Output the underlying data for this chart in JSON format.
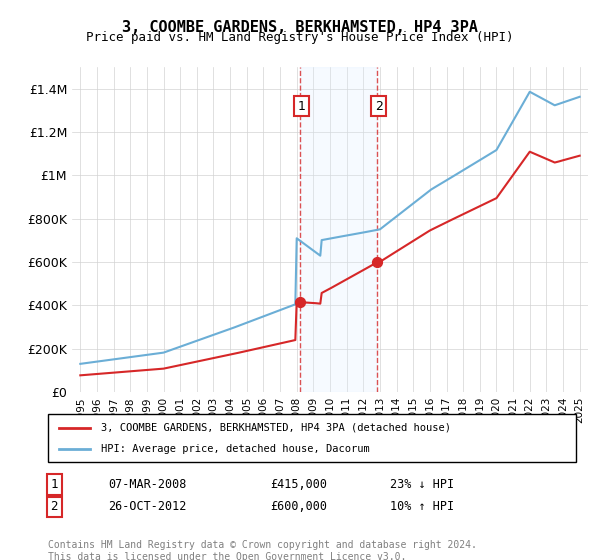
{
  "title": "3, COOMBE GARDENS, BERKHAMSTED, HP4 3PA",
  "subtitle": "Price paid vs. HM Land Registry's House Price Index (HPI)",
  "xlabel": "",
  "ylabel": "",
  "ylim": [
    0,
    1500000
  ],
  "yticks": [
    0,
    200000,
    400000,
    600000,
    800000,
    1000000,
    1200000,
    1400000
  ],
  "ytick_labels": [
    "£0",
    "£200K",
    "£400K",
    "£600K",
    "£800K",
    "£1M",
    "£1.2M",
    "£1.4M"
  ],
  "sale1_date_x": 2008.17,
  "sale1_price": 415000,
  "sale1_label": "1",
  "sale2_date_x": 2012.82,
  "sale2_price": 600000,
  "sale2_label": "2",
  "shade_xmin": 2008.17,
  "shade_xmax": 2012.82,
  "hpi_color": "#6baed6",
  "price_color": "#d62728",
  "sale_dot_color": "#d62728",
  "shade_color": "#ddeeff",
  "dashed_line_color": "#d62728",
  "legend_label1": "3, COOMBE GARDENS, BERKHAMSTED, HP4 3PA (detached house)",
  "legend_label2": "HPI: Average price, detached house, Dacorum",
  "annotation1_num": "1",
  "annotation1_date": "07-MAR-2008",
  "annotation1_price": "£415,000",
  "annotation1_hpi": "23% ↓ HPI",
  "annotation2_num": "2",
  "annotation2_date": "26-OCT-2012",
  "annotation2_price": "£600,000",
  "annotation2_hpi": "10% ↑ HPI",
  "footer": "Contains HM Land Registry data © Crown copyright and database right 2024.\nThis data is licensed under the Open Government Licence v3.0.",
  "xlim_min": 1995,
  "xlim_max": 2025.5,
  "xticks": [
    1995,
    1996,
    1997,
    1998,
    1999,
    2000,
    2001,
    2002,
    2003,
    2004,
    2005,
    2006,
    2007,
    2008,
    2009,
    2010,
    2011,
    2012,
    2013,
    2014,
    2015,
    2016,
    2017,
    2018,
    2019,
    2020,
    2021,
    2022,
    2023,
    2024,
    2025
  ]
}
